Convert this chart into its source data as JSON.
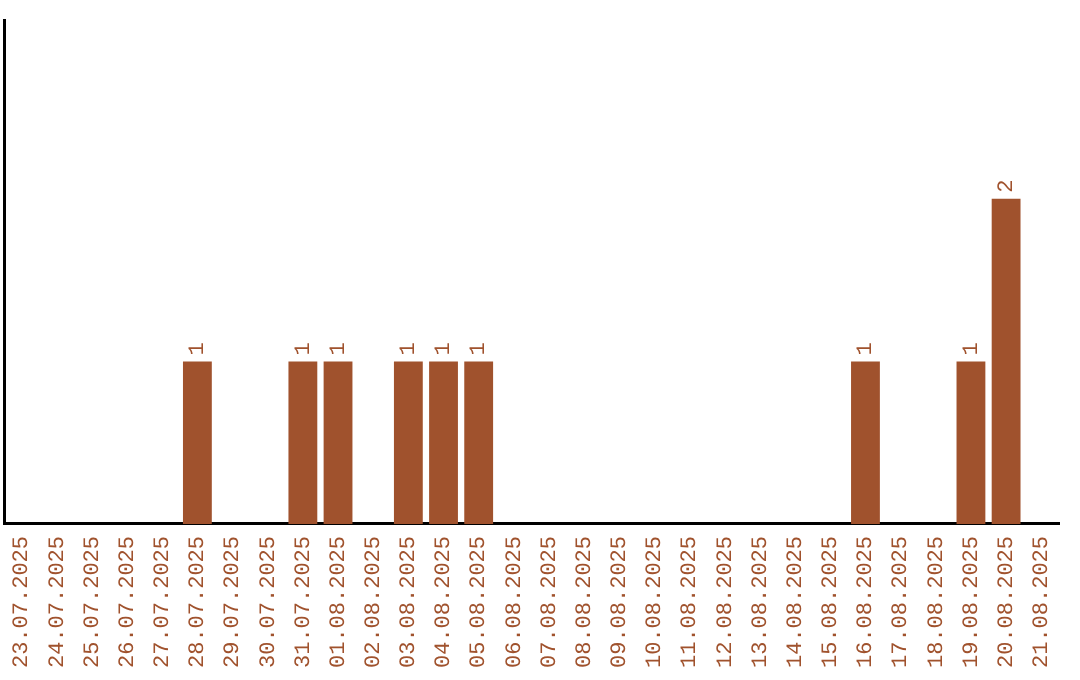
{
  "chart_data": {
    "type": "bar",
    "categories": [
      "23.07.2025",
      "24.07.2025",
      "25.07.2025",
      "26.07.2025",
      "27.07.2025",
      "28.07.2025",
      "29.07.2025",
      "30.07.2025",
      "31.07.2025",
      "01.08.2025",
      "02.08.2025",
      "03.08.2025",
      "04.08.2025",
      "05.08.2025",
      "06.08.2025",
      "07.08.2025",
      "08.08.2025",
      "09.08.2025",
      "10.08.2025",
      "11.08.2025",
      "12.08.2025",
      "13.08.2025",
      "14.08.2025",
      "15.08.2025",
      "16.08.2025",
      "17.08.2025",
      "18.08.2025",
      "19.08.2025",
      "20.08.2025",
      "21.08.2025"
    ],
    "values": [
      0,
      0,
      0,
      0,
      0,
      1,
      0,
      0,
      1,
      1,
      0,
      1,
      1,
      1,
      0,
      0,
      0,
      0,
      0,
      0,
      0,
      0,
      0,
      0,
      1,
      0,
      0,
      1,
      2,
      0
    ],
    "value_labels": [
      null,
      null,
      null,
      null,
      null,
      "1",
      null,
      null,
      "1",
      "1",
      null,
      "1",
      "1",
      "1",
      null,
      null,
      null,
      null,
      null,
      null,
      null,
      null,
      null,
      null,
      "1",
      null,
      null,
      "1",
      "2",
      null
    ],
    "color": "#a0522d",
    "ylim": [
      0,
      3.1
    ],
    "tick_labels": "x",
    "grid": false,
    "legend": false
  }
}
